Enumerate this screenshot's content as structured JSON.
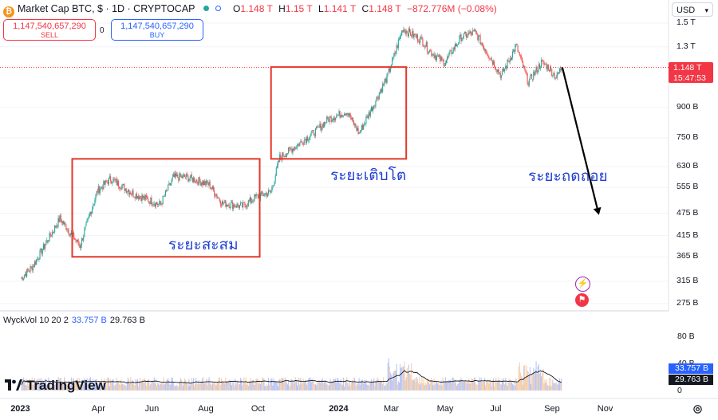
{
  "header": {
    "symbol_line": "Market Cap BTC, $ · 1D · CRYPTOCAP",
    "coin_icon": "bitcoin-icon",
    "ohlc": [
      {
        "k": "O",
        "v": "1.148 T"
      },
      {
        "k": "H",
        "v": "1.15 T"
      },
      {
        "k": "L",
        "v": "1.141 T"
      },
      {
        "k": "C",
        "v": "1.148 T"
      }
    ],
    "change": "−872.776M (−0.08%)"
  },
  "trade": {
    "sell_price": "1,147,540,657,290",
    "sell_label": "SELL",
    "spread": "0",
    "buy_price": "1,147,540,657,290",
    "buy_label": "BUY"
  },
  "currency_select": "USD",
  "price_tag": {
    "value": "1.148 T",
    "countdown": "15:47:53"
  },
  "volume_header": {
    "name": "WyckVol",
    "params": "10 20 2",
    "v1": "33.757 B",
    "v2": "29.763 B"
  },
  "volume_tags": {
    "v1": "33.757 B",
    "v2": "29.763 B"
  },
  "brand": "TradingView",
  "annotations": {
    "accumulation": "ระยะสะสม",
    "growth": "ระยะเติบโต",
    "decline": "ระยะถดถอย"
  },
  "colors": {
    "up": "#26a69a",
    "down": "#ef5350",
    "box": "#e5372b",
    "text_blue": "#1f3fd0",
    "tag_red": "#f23645",
    "vol_blue": "#2962ff"
  },
  "chart_data": [
    {
      "type": "candlestick",
      "title": "Market Cap BTC, $ · 1D · CRYPTOCAP",
      "y_scale": "log",
      "y_ticks": [
        "1.5 T",
        "1.3 T",
        "1.148 T",
        "900 B",
        "750 B",
        "630 B",
        "555 B",
        "475 B",
        "415 B",
        "365 B",
        "315 B",
        "275 B"
      ],
      "y_tick_values": [
        1500,
        1300,
        1148,
        900,
        750,
        630,
        555,
        475,
        415,
        365,
        315,
        275
      ],
      "x_ticks": [
        "2023",
        "Apr",
        "Jun",
        "Aug",
        "Oct",
        "2024",
        "Mar",
        "May",
        "Jul",
        "Sep",
        "Nov"
      ],
      "x_ticks_bold": [
        "2023",
        "2024"
      ],
      "unit": "USD (billions)",
      "last_close": 1148,
      "series_close_anchors": [
        {
          "date": "2023-01-01",
          "value": 320
        },
        {
          "date": "2023-01-15",
          "value": 345
        },
        {
          "date": "2023-02-15",
          "value": 460
        },
        {
          "date": "2023-03-10",
          "value": 390
        },
        {
          "date": "2023-03-30",
          "value": 545
        },
        {
          "date": "2023-04-14",
          "value": 585
        },
        {
          "date": "2023-05-10",
          "value": 535
        },
        {
          "date": "2023-06-10",
          "value": 500
        },
        {
          "date": "2023-06-25",
          "value": 590
        },
        {
          "date": "2023-07-10",
          "value": 592
        },
        {
          "date": "2023-08-05",
          "value": 565
        },
        {
          "date": "2023-08-20",
          "value": 505
        },
        {
          "date": "2023-09-12",
          "value": 495
        },
        {
          "date": "2023-09-28",
          "value": 525
        },
        {
          "date": "2023-10-15",
          "value": 540
        },
        {
          "date": "2023-10-25",
          "value": 665
        },
        {
          "date": "2023-11-15",
          "value": 720
        },
        {
          "date": "2023-12-05",
          "value": 780
        },
        {
          "date": "2023-12-20",
          "value": 840
        },
        {
          "date": "2024-01-10",
          "value": 880
        },
        {
          "date": "2024-01-24",
          "value": 770
        },
        {
          "date": "2024-02-10",
          "value": 920
        },
        {
          "date": "2024-02-25",
          "value": 1080
        },
        {
          "date": "2024-03-05",
          "value": 1250
        },
        {
          "date": "2024-03-14",
          "value": 1450
        },
        {
          "date": "2024-04-05",
          "value": 1350
        },
        {
          "date": "2024-04-15",
          "value": 1260
        },
        {
          "date": "2024-05-01",
          "value": 1180
        },
        {
          "date": "2024-05-20",
          "value": 1380
        },
        {
          "date": "2024-06-05",
          "value": 1420
        },
        {
          "date": "2024-06-25",
          "value": 1190
        },
        {
          "date": "2024-07-05",
          "value": 1090
        },
        {
          "date": "2024-07-22",
          "value": 1310
        },
        {
          "date": "2024-08-05",
          "value": 1050
        },
        {
          "date": "2024-08-20",
          "value": 1180
        },
        {
          "date": "2024-08-28",
          "value": 1150
        },
        {
          "date": "2024-09-06",
          "value": 1080
        },
        {
          "date": "2024-09-12",
          "value": 1148
        }
      ],
      "boxes": [
        {
          "label": "ระยะสะสม",
          "from": "2023-03-01",
          "to": "2023-10-02",
          "low": 365,
          "high": 660
        },
        {
          "label": "ระยะเติบโต",
          "from": "2023-10-15",
          "to": "2024-03-18",
          "low": 660,
          "high": 1150
        }
      ],
      "arrow": {
        "label": "ระยะถดถอย",
        "from": {
          "date": "2024-09-13",
          "value": 1148
        },
        "to": {
          "date": "2024-10-25",
          "value": 470
        }
      }
    },
    {
      "type": "bar",
      "title": "WyckVol 10 20 2",
      "y_ticks": [
        "80 B",
        "40 B",
        "0"
      ],
      "y_tick_values": [
        80,
        40,
        0
      ],
      "unit": "USD (billions)",
      "last_values": {
        "v1": 33.757,
        "v2": 29.763
      }
    }
  ]
}
